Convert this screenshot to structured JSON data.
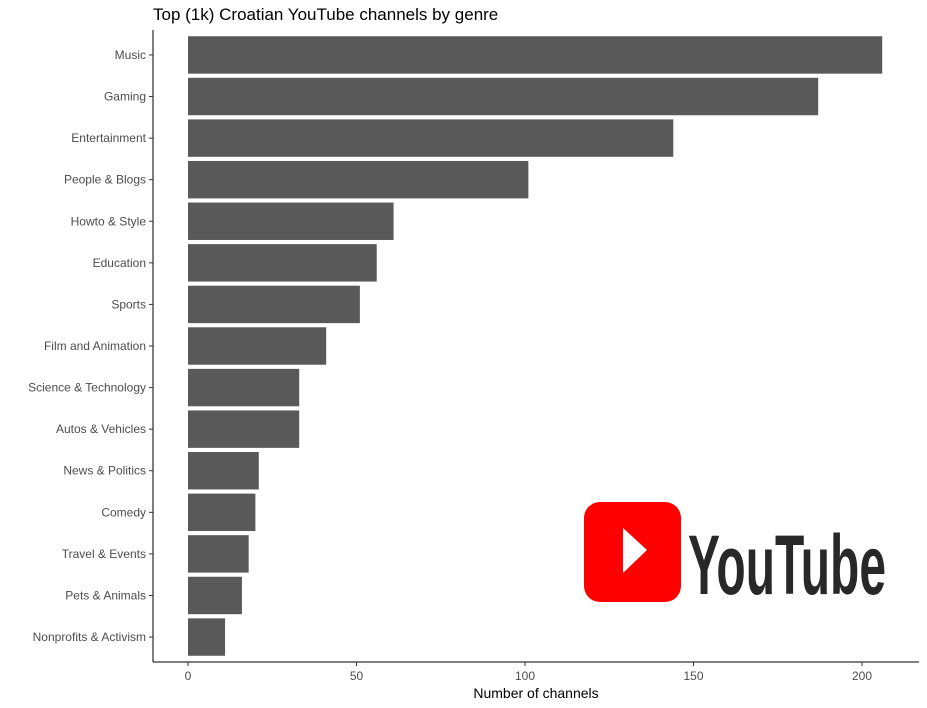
{
  "chart_data": {
    "type": "bar",
    "orientation": "horizontal",
    "title": "Top (1k) Croatian YouTube channels by genre",
    "xlabel": "Number of channels",
    "ylabel": "",
    "xlim": [
      -10,
      215
    ],
    "xticks": [
      0,
      50,
      100,
      150,
      200
    ],
    "grid": false,
    "categories": [
      "Music",
      "Gaming",
      "Entertainment",
      "People & Blogs",
      "Howto & Style",
      "Education",
      "Sports",
      "Film and Animation",
      "Science & Technology",
      "Autos & Vehicles",
      "News & Politics",
      "Comedy",
      "Travel & Events",
      "Pets & Animals",
      "Nonprofits & Activism"
    ],
    "values": [
      206,
      187,
      144,
      101,
      61,
      56,
      51,
      41,
      33,
      33,
      21,
      20,
      18,
      16,
      11
    ],
    "bar_color": "#595959"
  },
  "logo": {
    "text": "YouTube",
    "icon": "play-icon",
    "icon_color": "#ff0000",
    "text_color": "#282828"
  }
}
